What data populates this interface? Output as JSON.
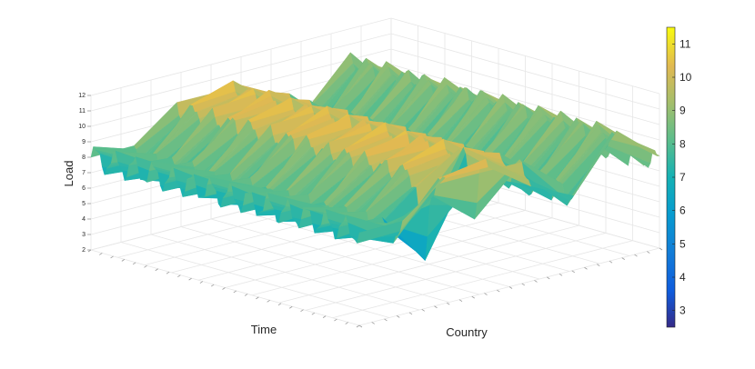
{
  "chart_data": {
    "type": "surface",
    "title": "",
    "xlabel": "Time",
    "ylabel": "Country",
    "zlabel": "Load",
    "zlim": [
      2,
      12
    ],
    "z_ticks": [
      "2",
      "3",
      "4",
      "5",
      "6",
      "7",
      "8",
      "9",
      "10",
      "11",
      "12"
    ],
    "grid": true,
    "colormap": "parula",
    "colorbar": {
      "placement": "right",
      "range": [
        2.5,
        11.5
      ],
      "ticks": [
        "3",
        "4",
        "5",
        "6",
        "7",
        "8",
        "9",
        "10",
        "11"
      ]
    },
    "series": [
      {
        "base": 8.0,
        "amp": 0.9,
        "dips": []
      },
      {
        "base": 7.2,
        "amp": 0.8,
        "dips": []
      },
      {
        "base": 9.6,
        "amp": 0.7,
        "dips": [
          {
            "t": 0.92,
            "depth": 6.0
          }
        ]
      },
      {
        "base": 10.4,
        "amp": 0.6,
        "dips": [
          {
            "t": 0.95,
            "depth": 3.5
          }
        ]
      },
      {
        "base": 8.9,
        "amp": 0.8,
        "dips": []
      },
      {
        "base": 6.9,
        "amp": 0.9,
        "dips": []
      },
      {
        "base": 9.9,
        "amp": 0.6,
        "dips": []
      },
      {
        "base": 7.6,
        "amp": 0.8,
        "dips": []
      }
    ],
    "colors": {
      "axis": "#262626",
      "grid": "#e6e6e6",
      "background": "#ffffff"
    }
  }
}
